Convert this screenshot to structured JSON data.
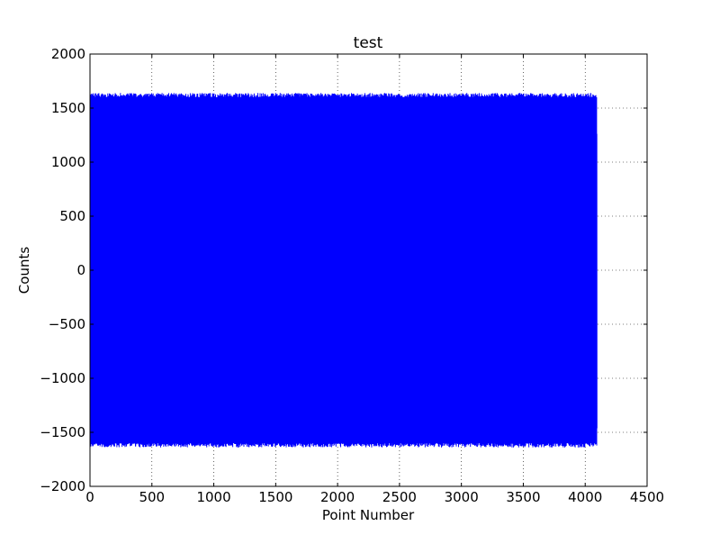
{
  "chart_data": {
    "type": "line",
    "title": "test",
    "xlabel": "Point Number",
    "ylabel": "Counts",
    "xlim": [
      0,
      4500
    ],
    "ylim": [
      -2000,
      2000
    ],
    "xticks": [
      0,
      500,
      1000,
      1500,
      2000,
      2500,
      3000,
      3500,
      4000,
      4500
    ],
    "yticks": [
      -2000,
      -1500,
      -1000,
      -500,
      0,
      500,
      1000,
      1500,
      2000
    ],
    "xtick_labels": [
      "0",
      "500",
      "1000",
      "1500",
      "2000",
      "2500",
      "3000",
      "3500",
      "4000",
      "4500"
    ],
    "ytick_labels": [
      "−2000",
      "−1500",
      "−1000",
      "−500",
      "0",
      "500",
      "1000",
      "1500",
      "2000"
    ],
    "grid": true,
    "grid_style": "dotted",
    "legend": "none",
    "series": [
      {
        "color": "#0000ff",
        "x_start": 0,
        "x_end": 4095,
        "num_points": 4096,
        "amplitude": 1640,
        "amplitude_min": 1600,
        "y_min": -1650,
        "y_max": 1660,
        "description_shape": "dense oscillation filling band between about -1650 and 1660 counts"
      }
    ]
  }
}
